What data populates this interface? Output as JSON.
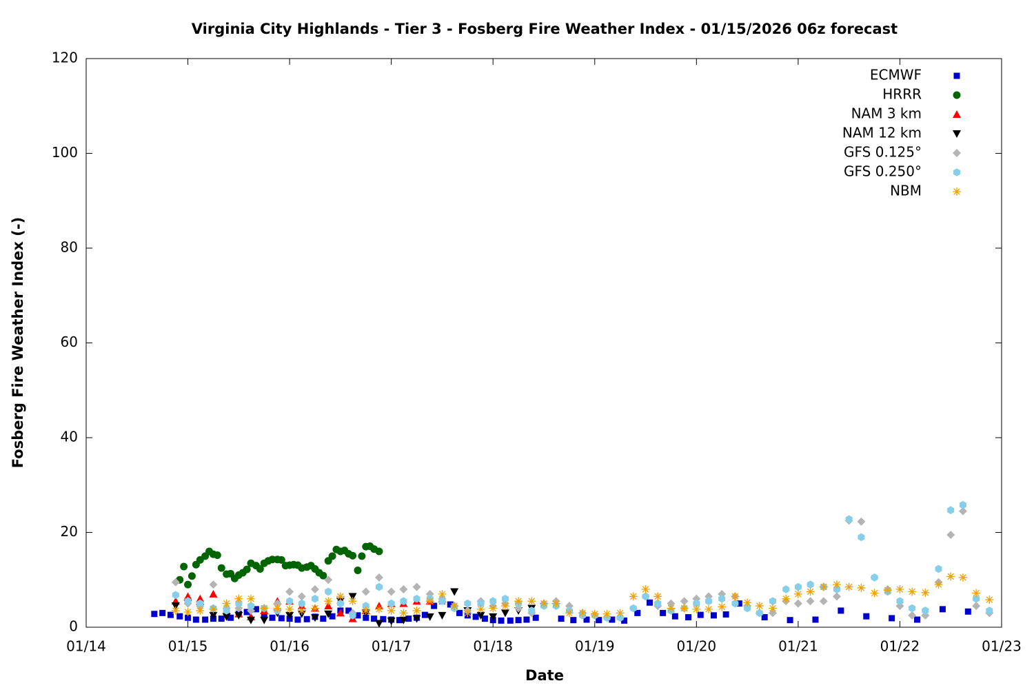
{
  "chart_data": {
    "type": "scatter",
    "title": "Virginia City Highlands - Tier 3 - Fosberg Fire Weather Index - 01/15/2026 06z forecast",
    "x_label": "Date",
    "y_label": "Fosberg Fire Weather Index (-)",
    "xlim": [
      14,
      23
    ],
    "xticks": [
      {
        "value": 14,
        "label": "01/14"
      },
      {
        "value": 15,
        "label": "01/15"
      },
      {
        "value": 16,
        "label": "01/16"
      },
      {
        "value": 17,
        "label": "01/17"
      },
      {
        "value": 18,
        "label": "01/18"
      },
      {
        "value": 19,
        "label": "01/19"
      },
      {
        "value": 20,
        "label": "01/20"
      },
      {
        "value": 21,
        "label": "01/21"
      },
      {
        "value": 22,
        "label": "01/22"
      },
      {
        "value": 23,
        "label": "01/23"
      }
    ],
    "ylim": [
      0,
      120
    ],
    "yticks": [
      0,
      20,
      40,
      60,
      80,
      100,
      120
    ],
    "grid": false,
    "legend": "top-right",
    "series": [
      {
        "name": "ECMWF",
        "color": "#0000cc",
        "marker": "square",
        "x": [
          14.67,
          14.75,
          14.83,
          14.92,
          15.0,
          15.08,
          15.17,
          15.25,
          15.33,
          15.42,
          15.5,
          15.58,
          15.67,
          15.75,
          15.83,
          15.92,
          16.0,
          16.08,
          16.17,
          16.25,
          16.33,
          16.42,
          16.5,
          16.58,
          16.67,
          16.75,
          16.83,
          16.92,
          17.0,
          17.08,
          17.17,
          17.25,
          17.33,
          17.42,
          17.5,
          17.58,
          17.67,
          17.75,
          17.83,
          17.92,
          18.0,
          18.08,
          18.17,
          18.25,
          18.33,
          18.42,
          18.67,
          18.79,
          18.92,
          19.04,
          19.17,
          19.29,
          19.42,
          19.54,
          19.67,
          19.79,
          19.92,
          20.04,
          20.17,
          20.29,
          20.42,
          20.67,
          20.92,
          21.17,
          21.42,
          21.67,
          21.92,
          22.17,
          22.42,
          22.67
        ],
        "values": [
          2.8,
          3.0,
          2.6,
          2.3,
          2.0,
          1.6,
          1.6,
          1.8,
          1.8,
          2.0,
          2.8,
          3.2,
          3.8,
          2.4,
          2.0,
          1.9,
          1.8,
          1.6,
          1.7,
          2.2,
          1.8,
          2.3,
          3.5,
          3.5,
          2.5,
          2.0,
          1.8,
          1.7,
          1.6,
          1.5,
          1.8,
          2.0,
          2.6,
          4.5,
          5.5,
          4.8,
          3.0,
          2.5,
          2.2,
          1.8,
          1.5,
          1.4,
          1.4,
          1.5,
          1.6,
          2.0,
          1.8,
          1.5,
          1.6,
          1.5,
          1.6,
          1.4,
          3.0,
          5.2,
          3.0,
          2.3,
          2.1,
          2.6,
          2.5,
          2.7,
          5.0,
          2.1,
          1.5,
          1.6,
          3.5,
          2.3,
          1.9,
          1.6,
          3.8,
          3.3
        ]
      },
      {
        "name": "HRRR",
        "color": "#006400",
        "marker": "circle",
        "x": [
          14.92,
          14.96,
          15.0,
          15.04,
          15.08,
          15.12,
          15.17,
          15.21,
          15.25,
          15.29,
          15.33,
          15.38,
          15.42,
          15.46,
          15.5,
          15.54,
          15.58,
          15.62,
          15.67,
          15.71,
          15.75,
          15.79,
          15.83,
          15.88,
          15.92,
          15.96,
          16.0,
          16.04,
          16.08,
          16.12,
          16.17,
          16.21,
          16.25,
          16.29,
          16.33,
          16.38,
          16.42,
          16.46,
          16.5,
          16.54,
          16.58,
          16.62,
          16.67,
          16.71,
          16.75,
          16.79,
          16.83,
          16.88
        ],
        "values": [
          10.0,
          12.8,
          9.0,
          10.8,
          13.2,
          14.2,
          15.0,
          16.0,
          15.4,
          15.2,
          12.5,
          11.2,
          11.3,
          10.3,
          11.0,
          11.5,
          12.2,
          13.5,
          13.0,
          12.3,
          13.5,
          14.0,
          14.3,
          14.3,
          14.2,
          13.0,
          13.1,
          13.2,
          13.1,
          12.5,
          12.7,
          13.0,
          12.3,
          11.5,
          10.9,
          14.0,
          15.0,
          16.4,
          16.0,
          16.2,
          15.5,
          15.1,
          12.0,
          15.0,
          17.0,
          17.1,
          16.5,
          16.0
        ]
      },
      {
        "name": "NAM 3 km",
        "color": "#ff0000",
        "marker": "triangle-up",
        "x": [
          14.88,
          15.0,
          15.12,
          15.25,
          15.38,
          15.5,
          15.62,
          15.75,
          15.88,
          16.0,
          16.12,
          16.25,
          16.38,
          16.5,
          16.62,
          16.75,
          16.88,
          17.0,
          17.12,
          17.25,
          17.38,
          17.5
        ],
        "values": [
          5.5,
          6.5,
          6.0,
          7.0,
          3.5,
          2.8,
          2.2,
          3.5,
          5.5,
          5.5,
          4.5,
          4.0,
          4.5,
          3.0,
          1.8,
          3.5,
          4.5,
          5.0,
          5.0,
          5.5,
          5.5,
          6.0
        ]
      },
      {
        "name": "NAM 12 km",
        "color": "#000000",
        "marker": "triangle-down",
        "x": [
          14.88,
          15.0,
          15.12,
          15.25,
          15.38,
          15.5,
          15.62,
          15.75,
          15.88,
          16.0,
          16.12,
          16.25,
          16.38,
          16.5,
          16.62,
          16.75,
          16.88,
          17.0,
          17.12,
          17.25,
          17.38,
          17.5,
          17.62,
          17.75,
          17.88,
          18.0,
          18.12,
          18.25,
          18.38
        ],
        "values": [
          4.5,
          5.0,
          4.2,
          2.5,
          2.2,
          2.5,
          1.5,
          1.5,
          3.0,
          2.5,
          2.8,
          2.0,
          2.8,
          5.5,
          6.5,
          3.0,
          0.8,
          1.3,
          1.5,
          1.8,
          2.2,
          2.5,
          7.5,
          3.5,
          2.5,
          2.2,
          3.0,
          3.5,
          4.0
        ]
      },
      {
        "name": "GFS 0.125°",
        "color": "#b4b4b4",
        "marker": "diamond",
        "x": [
          14.88,
          15.0,
          15.12,
          15.25,
          15.38,
          15.5,
          15.62,
          15.75,
          15.88,
          16.0,
          16.12,
          16.25,
          16.38,
          16.5,
          16.62,
          16.75,
          16.88,
          17.0,
          17.12,
          17.25,
          17.38,
          17.5,
          17.62,
          17.75,
          17.88,
          18.0,
          18.12,
          18.25,
          18.38,
          18.5,
          18.62,
          18.75,
          18.88,
          19.0,
          19.12,
          19.25,
          19.38,
          19.5,
          19.62,
          19.75,
          19.88,
          20.0,
          20.12,
          20.25,
          20.38,
          20.5,
          20.62,
          20.75,
          20.88,
          21.0,
          21.12,
          21.25,
          21.38,
          21.5,
          21.62,
          21.75,
          21.88,
          22.0,
          22.12,
          22.25,
          22.38,
          22.5,
          22.62,
          22.75,
          22.88
        ],
        "values": [
          9.5,
          5.0,
          4.5,
          9.0,
          4.0,
          4.0,
          3.5,
          4.0,
          5.0,
          7.5,
          6.5,
          8.0,
          10.0,
          5.0,
          3.0,
          7.5,
          10.5,
          7.5,
          8.0,
          8.5,
          7.0,
          6.0,
          4.5,
          3.5,
          5.5,
          4.5,
          5.0,
          4.0,
          3.0,
          5.0,
          5.5,
          4.5,
          3.0,
          2.5,
          2.0,
          2.0,
          4.0,
          6.5,
          4.5,
          5.0,
          5.5,
          6.0,
          6.5,
          7.0,
          6.5,
          4.5,
          3.0,
          3.0,
          5.5,
          5.0,
          5.5,
          5.5,
          6.5,
          22.5,
          22.3,
          10.5,
          8.0,
          4.5,
          2.5,
          2.5,
          9.5,
          19.5,
          24.5,
          4.5,
          3.0
        ]
      },
      {
        "name": "GFS 0.250°",
        "color": "#87ceeb",
        "marker": "hexagon",
        "x": [
          14.88,
          15.0,
          15.12,
          15.25,
          15.38,
          15.5,
          15.62,
          15.75,
          15.88,
          16.0,
          16.12,
          16.25,
          16.38,
          16.5,
          16.62,
          16.75,
          16.88,
          17.0,
          17.12,
          17.25,
          17.38,
          17.5,
          17.62,
          17.75,
          17.88,
          18.0,
          18.12,
          18.25,
          18.38,
          18.5,
          18.62,
          18.75,
          18.88,
          19.0,
          19.12,
          19.25,
          19.38,
          19.5,
          19.62,
          19.75,
          19.88,
          20.0,
          20.12,
          20.25,
          20.38,
          20.5,
          20.62,
          20.75,
          20.88,
          21.0,
          21.12,
          21.25,
          21.38,
          21.5,
          21.62,
          21.75,
          21.88,
          22.0,
          22.12,
          22.25,
          22.38,
          22.5,
          22.62,
          22.75,
          22.88
        ],
        "values": [
          6.8,
          5.5,
          5.0,
          4.0,
          3.5,
          5.0,
          4.5,
          4.0,
          3.5,
          5.5,
          5.0,
          6.0,
          7.5,
          5.0,
          2.5,
          4.5,
          8.5,
          5.0,
          5.5,
          6.0,
          6.0,
          5.5,
          4.0,
          5.0,
          5.0,
          5.5,
          6.0,
          5.0,
          3.5,
          4.5,
          4.5,
          3.5,
          2.5,
          2.5,
          2.0,
          2.0,
          4.0,
          6.5,
          5.0,
          3.5,
          4.0,
          5.0,
          5.5,
          6.0,
          5.0,
          4.0,
          3.0,
          5.5,
          8.0,
          8.5,
          9.0,
          8.5,
          8.0,
          22.8,
          19.0,
          10.5,
          7.5,
          5.5,
          4.0,
          3.5,
          12.3,
          24.7,
          25.8,
          6.0,
          3.5
        ]
      },
      {
        "name": "NBM",
        "color": "#f0a000",
        "marker": "asterisk",
        "x": [
          14.88,
          15.0,
          15.12,
          15.25,
          15.38,
          15.5,
          15.62,
          15.75,
          15.88,
          16.0,
          16.12,
          16.25,
          16.38,
          16.5,
          16.62,
          16.75,
          16.88,
          17.0,
          17.12,
          17.25,
          17.38,
          17.5,
          17.62,
          17.75,
          17.88,
          18.0,
          18.12,
          18.25,
          18.38,
          18.5,
          18.62,
          18.75,
          18.88,
          19.0,
          19.12,
          19.25,
          19.38,
          19.5,
          19.62,
          19.75,
          19.88,
          20.0,
          20.12,
          20.25,
          20.38,
          20.5,
          20.62,
          20.75,
          20.88,
          21.0,
          21.12,
          21.25,
          21.38,
          21.5,
          21.62,
          21.75,
          21.88,
          22.0,
          22.12,
          22.25,
          22.38,
          22.5,
          22.62,
          22.75,
          22.88
        ],
        "values": [
          3.5,
          3.2,
          3.5,
          3.8,
          5.0,
          6.0,
          6.0,
          4.0,
          4.0,
          3.8,
          3.5,
          4.0,
          5.5,
          6.5,
          5.5,
          3.5,
          3.8,
          3.5,
          3.0,
          3.5,
          5.5,
          7.0,
          4.5,
          3.0,
          3.8,
          4.0,
          4.5,
          5.5,
          5.5,
          5.0,
          5.0,
          3.0,
          3.0,
          2.8,
          2.8,
          3.0,
          6.5,
          8.0,
          6.5,
          4.0,
          4.0,
          3.8,
          3.8,
          4.3,
          6.5,
          5.2,
          4.5,
          4.0,
          6.0,
          7.0,
          7.5,
          8.5,
          9.0,
          8.5,
          8.3,
          7.2,
          7.8,
          8.0,
          7.5,
          7.3,
          9.0,
          10.7,
          10.5,
          7.2,
          5.8
        ]
      }
    ]
  }
}
